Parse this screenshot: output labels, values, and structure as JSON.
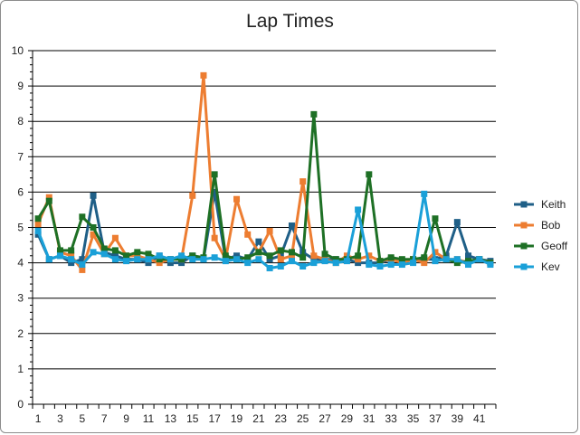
{
  "chart_data": {
    "type": "line",
    "title": "Lap Times",
    "xlabel": "",
    "ylabel": "",
    "x": [
      1,
      2,
      3,
      4,
      5,
      6,
      7,
      8,
      9,
      10,
      11,
      12,
      13,
      14,
      15,
      16,
      17,
      18,
      19,
      20,
      21,
      22,
      23,
      24,
      25,
      26,
      27,
      28,
      29,
      30,
      31,
      32,
      33,
      34,
      35,
      36,
      37,
      38,
      39,
      40,
      41,
      42
    ],
    "x_tick_labels": [
      "1",
      "3",
      "5",
      "7",
      "9",
      "11",
      "13",
      "15",
      "17",
      "19",
      "21",
      "23",
      "25",
      "27",
      "29",
      "31",
      "33",
      "35",
      "37",
      "39",
      "41"
    ],
    "ylim": [
      0,
      10
    ],
    "y_tick_labels": [
      "0",
      "1",
      "2",
      "3",
      "4",
      "5",
      "6",
      "7",
      "8",
      "9",
      "10"
    ],
    "grid": "horizontal",
    "legend_position": "right",
    "series": [
      {
        "name": "Keith",
        "color": "#1f5f87",
        "values": [
          4.8,
          4.1,
          4.2,
          4.0,
          4.1,
          5.9,
          4.3,
          4.2,
          4.1,
          4.1,
          4.0,
          4.2,
          4.0,
          4.0,
          4.2,
          4.1,
          6.0,
          4.1,
          4.2,
          4.1,
          4.6,
          4.1,
          4.2,
          5.05,
          4.3,
          4.1,
          4.1,
          4.1,
          4.1,
          4.0,
          4.0,
          4.0,
          4.1,
          4.0,
          4.1,
          4.1,
          4.1,
          4.2,
          5.15,
          4.2,
          4.1,
          4.05
        ]
      },
      {
        "name": "Bob",
        "color": "#ed7d31",
        "values": [
          5.1,
          5.85,
          4.3,
          4.2,
          3.8,
          4.8,
          4.25,
          4.7,
          4.2,
          4.2,
          4.1,
          4.0,
          4.1,
          4.1,
          5.9,
          9.3,
          4.7,
          4.1,
          5.8,
          4.8,
          4.3,
          4.9,
          4.1,
          4.2,
          6.3,
          4.2,
          4.1,
          4.0,
          4.2,
          4.1,
          4.2,
          4.05,
          4.1,
          4.0,
          4.1,
          4.0,
          4.3,
          4.1,
          4.1,
          4.0,
          4.1,
          4.0
        ]
      },
      {
        "name": "Geoff",
        "color": "#1e7025",
        "values": [
          5.25,
          5.75,
          4.35,
          4.35,
          5.3,
          5.0,
          4.4,
          4.35,
          4.2,
          4.3,
          4.25,
          4.1,
          4.1,
          4.1,
          4.2,
          4.15,
          6.5,
          4.2,
          4.1,
          4.15,
          4.3,
          4.2,
          4.35,
          4.3,
          4.15,
          8.2,
          4.25,
          4.1,
          4.1,
          4.2,
          6.5,
          4.05,
          4.15,
          4.1,
          4.1,
          4.15,
          5.25,
          4.1,
          4.0,
          4.05,
          4.1,
          4.0
        ]
      },
      {
        "name": "Kev",
        "color": "#1aa0d8",
        "values": [
          4.9,
          4.1,
          4.2,
          4.1,
          3.95,
          4.3,
          4.25,
          4.1,
          4.05,
          4.1,
          4.1,
          4.2,
          4.1,
          4.2,
          4.1,
          4.1,
          4.15,
          4.05,
          4.1,
          4.0,
          4.1,
          3.85,
          3.9,
          4.05,
          3.9,
          4.0,
          4.05,
          4.0,
          4.05,
          5.5,
          3.95,
          3.9,
          3.95,
          3.95,
          4.0,
          5.95,
          4.05,
          4.1,
          4.1,
          3.95,
          4.1,
          3.95
        ]
      }
    ]
  }
}
